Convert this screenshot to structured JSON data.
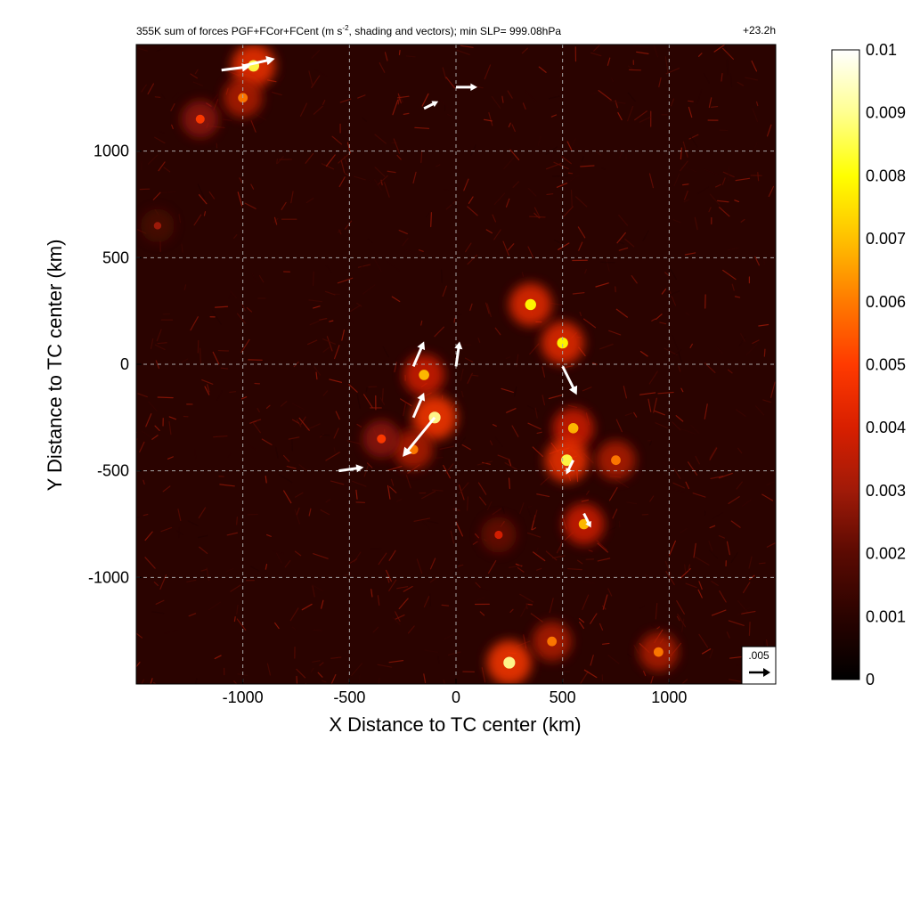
{
  "title_prefix": "355K sum of forces PGF+FCor+FCent (m s",
  "title_exponent": "-2",
  "title_suffix": ", shading and vectors); min SLP= 999.08hPa",
  "time_label": "+23.2h",
  "reference_vector_label": ".005",
  "colors": {
    "background_min": "#000000",
    "dark_red": "#3a0502",
    "mid_red": "#a01a08",
    "bright_red": "#ff2a00",
    "yellow": "#ffff00",
    "white_max": "#ffffff",
    "grid": "#aaaaaa",
    "vector": "#ffffff"
  },
  "chart_data": {
    "type": "heatmap",
    "xlabel": "X Distance to TC center (km)",
    "ylabel": "Y Distance to TC center (km)",
    "xlim": [
      -1500,
      1500
    ],
    "ylim": [
      -1500,
      1500
    ],
    "xticks": [
      -1000,
      -500,
      0,
      500,
      1000
    ],
    "yticks": [
      -1000,
      -500,
      0,
      500,
      1000
    ],
    "grid": true,
    "colorbar": {
      "min": 0,
      "max": 0.01,
      "ticks": [
        "0",
        "0.001",
        "0.002",
        "0.003",
        "0.004",
        "0.005",
        "0.006",
        "0.007",
        "0.008",
        "0.009",
        "0.01"
      ]
    },
    "hotspots": [
      {
        "x": -950,
        "y": 1400,
        "v": 0.0085
      },
      {
        "x": -1000,
        "y": 1250,
        "v": 0.006
      },
      {
        "x": -1200,
        "y": 1150,
        "v": 0.005
      },
      {
        "x": -1400,
        "y": 650,
        "v": 0.003
      },
      {
        "x": -150,
        "y": -50,
        "v": 0.007
      },
      {
        "x": -100,
        "y": -250,
        "v": 0.009
      },
      {
        "x": -200,
        "y": -400,
        "v": 0.006
      },
      {
        "x": -350,
        "y": -350,
        "v": 0.005
      },
      {
        "x": 350,
        "y": 280,
        "v": 0.008
      },
      {
        "x": 500,
        "y": 100,
        "v": 0.008
      },
      {
        "x": 550,
        "y": -300,
        "v": 0.007
      },
      {
        "x": 520,
        "y": -450,
        "v": 0.0085
      },
      {
        "x": 600,
        "y": -750,
        "v": 0.007
      },
      {
        "x": 750,
        "y": -450,
        "v": 0.006
      },
      {
        "x": 250,
        "y": -1400,
        "v": 0.009
      },
      {
        "x": 450,
        "y": -1300,
        "v": 0.006
      },
      {
        "x": 950,
        "y": -1350,
        "v": 0.006
      },
      {
        "x": 200,
        "y": -800,
        "v": 0.004
      }
    ],
    "vectors": [
      {
        "x": -1000,
        "y": 1400,
        "u": 0.0045,
        "v": 0.001
      },
      {
        "x": -1100,
        "y": 1380,
        "u": 0.004,
        "v": 0.0005
      },
      {
        "x": 0,
        "y": 1300,
        "u": 0.003,
        "v": 0.0
      },
      {
        "x": -150,
        "y": 1200,
        "u": 0.002,
        "v": 0.001
      },
      {
        "x": -200,
        "y": -10,
        "u": 0.0015,
        "v": 0.0035
      },
      {
        "x": 0,
        "y": -10,
        "u": 0.0005,
        "v": 0.0035
      },
      {
        "x": -200,
        "y": -250,
        "u": 0.0015,
        "v": 0.0035
      },
      {
        "x": -100,
        "y": -250,
        "u": -0.0045,
        "v": -0.0055
      },
      {
        "x": -550,
        "y": -500,
        "u": 0.0035,
        "v": 0.0005
      },
      {
        "x": 500,
        "y": -10,
        "u": 0.002,
        "v": -0.004
      },
      {
        "x": 550,
        "y": -450,
        "u": -0.001,
        "v": -0.002
      },
      {
        "x": 600,
        "y": -700,
        "u": 0.001,
        "v": -0.002
      }
    ]
  }
}
